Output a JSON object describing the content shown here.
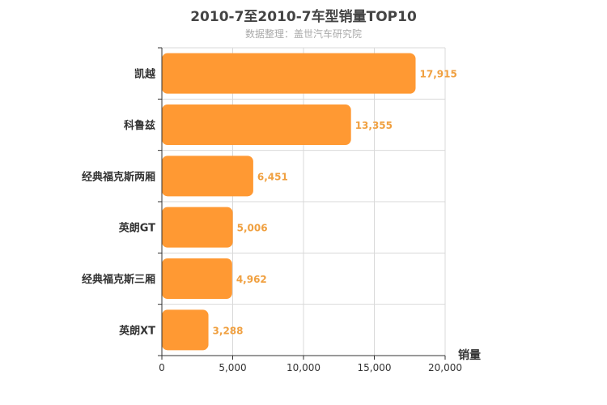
{
  "chart_data": {
    "type": "bar",
    "orientation": "horizontal",
    "title": "2010-7至2010-7车型销量TOP10",
    "subtitle": "数据整理：盖世汽车研究院",
    "xlabel": "销量",
    "ylabel": "",
    "categories": [
      "凯越",
      "科鲁兹",
      "经典福克斯两厢",
      "英朗GT",
      "经典福克斯三厢",
      "英朗XT"
    ],
    "values": [
      17915,
      13355,
      6451,
      5006,
      4962,
      3288
    ],
    "value_labels": [
      "17,915",
      "13,355",
      "6,451",
      "5,006",
      "4,962",
      "3,288"
    ],
    "xlim": [
      0,
      20000
    ],
    "xticks": [
      0,
      5000,
      10000,
      15000,
      20000
    ],
    "xtick_labels": [
      "0",
      "5,000",
      "10,000",
      "15,000",
      "20,000"
    ],
    "grid": true,
    "bar_color": "#ff9933",
    "label_color": "#f0a040"
  }
}
